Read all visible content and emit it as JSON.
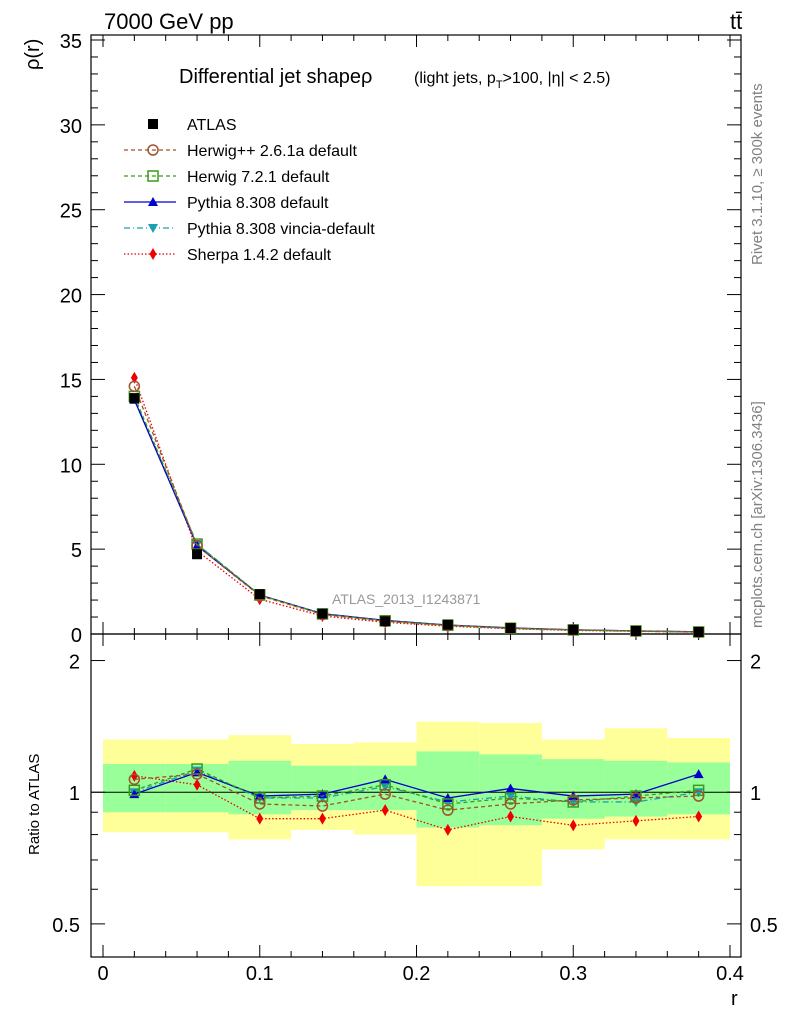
{
  "header": {
    "left": "7000 GeV pp",
    "right": "tt̄"
  },
  "side_labels": {
    "rivet": "Rivet 3.1.10, ≥ 300k events",
    "mcplots": "mcplots.cern.ch [arXiv:1306.3436]"
  },
  "plot_title": "Differential jet shapeρ",
  "plot_subtitle": "(light jets, p_T>100, |η| < 2.5)",
  "analysis_id": "ATLAS_2013_I1243871",
  "colors": {
    "ATLAS": "#000000",
    "Herwig++": "#a0522d",
    "Herwig7": "#3a9a1a",
    "Pythia": "#0000cc",
    "Vincia": "#1aa0b4",
    "Sherpa": "#ee0000",
    "band_yellow": "#ffff99",
    "band_green": "#99ff99"
  },
  "chart_data": [
    {
      "type": "line",
      "ylabel": "ρ(r)",
      "xlabel": "r",
      "xlim": [
        0,
        0.4
      ],
      "ylim": [
        0,
        35
      ],
      "yticks": [
        0,
        5,
        10,
        15,
        20,
        25,
        30,
        35
      ],
      "x": [
        0.02,
        0.06,
        0.1,
        0.14,
        0.18,
        0.22,
        0.26,
        0.3,
        0.34,
        0.38
      ],
      "legend": {
        "position": "top-left"
      },
      "series": [
        {
          "name": "ATLAS",
          "marker": "square",
          "values": [
            13.9,
            4.7,
            2.35,
            1.2,
            0.75,
            0.55,
            0.35,
            0.25,
            0.18,
            0.12
          ]
        },
        {
          "name": "Herwig++ 2.6.1a default",
          "marker": "circle-open",
          "dash": "4,3",
          "values": [
            14.6,
            5.2,
            2.25,
            1.15,
            0.75,
            0.5,
            0.33,
            0.24,
            0.17,
            0.11
          ]
        },
        {
          "name": "Herwig 7.2.1 default",
          "marker": "square-open",
          "dash": "4,3",
          "values": [
            14.0,
            5.3,
            2.3,
            1.18,
            0.78,
            0.52,
            0.34,
            0.24,
            0.18,
            0.12
          ]
        },
        {
          "name": "Pythia 8.308 default",
          "marker": "triangle-up",
          "dash": "",
          "values": [
            13.8,
            5.2,
            2.3,
            1.2,
            0.8,
            0.53,
            0.36,
            0.25,
            0.18,
            0.13
          ]
        },
        {
          "name": "Pythia 8.308 vincia-default",
          "marker": "triangle-down",
          "dash": "6,3,1,3",
          "values": [
            13.9,
            5.3,
            2.3,
            1.17,
            0.78,
            0.52,
            0.34,
            0.24,
            0.17,
            0.12
          ]
        },
        {
          "name": "Sherpa 1.4.2 default",
          "marker": "diamond",
          "dash": "1.5,2",
          "values": [
            15.1,
            4.9,
            2.05,
            1.06,
            0.69,
            0.46,
            0.31,
            0.21,
            0.16,
            0.11
          ]
        }
      ]
    },
    {
      "type": "line",
      "ylabel": "Ratio to ATLAS",
      "xlabel": "r",
      "xlim": [
        0,
        0.4
      ],
      "ylim": [
        0.42,
        2.3
      ],
      "yticks": [
        0.5,
        1,
        2
      ],
      "log_y": true,
      "bands": {
        "edges": [
          0,
          0.04,
          0.08,
          0.12,
          0.16,
          0.2,
          0.24,
          0.28,
          0.32,
          0.36,
          0.4
        ],
        "green": [
          [
            0.9,
            1.16
          ],
          [
            0.9,
            1.16
          ],
          [
            0.89,
            1.18
          ],
          [
            0.91,
            1.15
          ],
          [
            0.91,
            1.15
          ],
          [
            0.83,
            1.24
          ],
          [
            0.84,
            1.22
          ],
          [
            0.87,
            1.19
          ],
          [
            0.88,
            1.18
          ],
          [
            0.89,
            1.17
          ]
        ],
        "yellow": [
          [
            0.81,
            1.32
          ],
          [
            0.81,
            1.32
          ],
          [
            0.78,
            1.35
          ],
          [
            0.82,
            1.29
          ],
          [
            0.8,
            1.3
          ],
          [
            0.61,
            1.45
          ],
          [
            0.61,
            1.44
          ],
          [
            0.74,
            1.32
          ],
          [
            0.78,
            1.4
          ],
          [
            0.78,
            1.33
          ]
        ]
      },
      "series": [
        {
          "name": "Herwig++ 2.6.1a default",
          "values": [
            1.07,
            1.1,
            0.94,
            0.93,
            0.99,
            0.91,
            0.94,
            0.96,
            0.97,
            0.98
          ]
        },
        {
          "name": "Herwig 7.2.1 default",
          "values": [
            1.01,
            1.13,
            0.97,
            0.98,
            1.04,
            0.94,
            0.97,
            0.95,
            0.98,
            1.01
          ]
        },
        {
          "name": "Pythia 8.308 default",
          "values": [
            0.99,
            1.11,
            0.98,
            0.99,
            1.07,
            0.97,
            1.02,
            0.98,
            0.99,
            1.1
          ]
        },
        {
          "name": "Pythia 8.308 vincia-default",
          "values": [
            1.0,
            1.12,
            0.97,
            0.97,
            1.03,
            0.95,
            0.98,
            0.95,
            0.95,
            1.0
          ]
        },
        {
          "name": "Sherpa 1.4.2 default",
          "values": [
            1.09,
            1.04,
            0.87,
            0.87,
            0.91,
            0.82,
            0.88,
            0.84,
            0.86,
            0.88
          ]
        }
      ]
    }
  ]
}
